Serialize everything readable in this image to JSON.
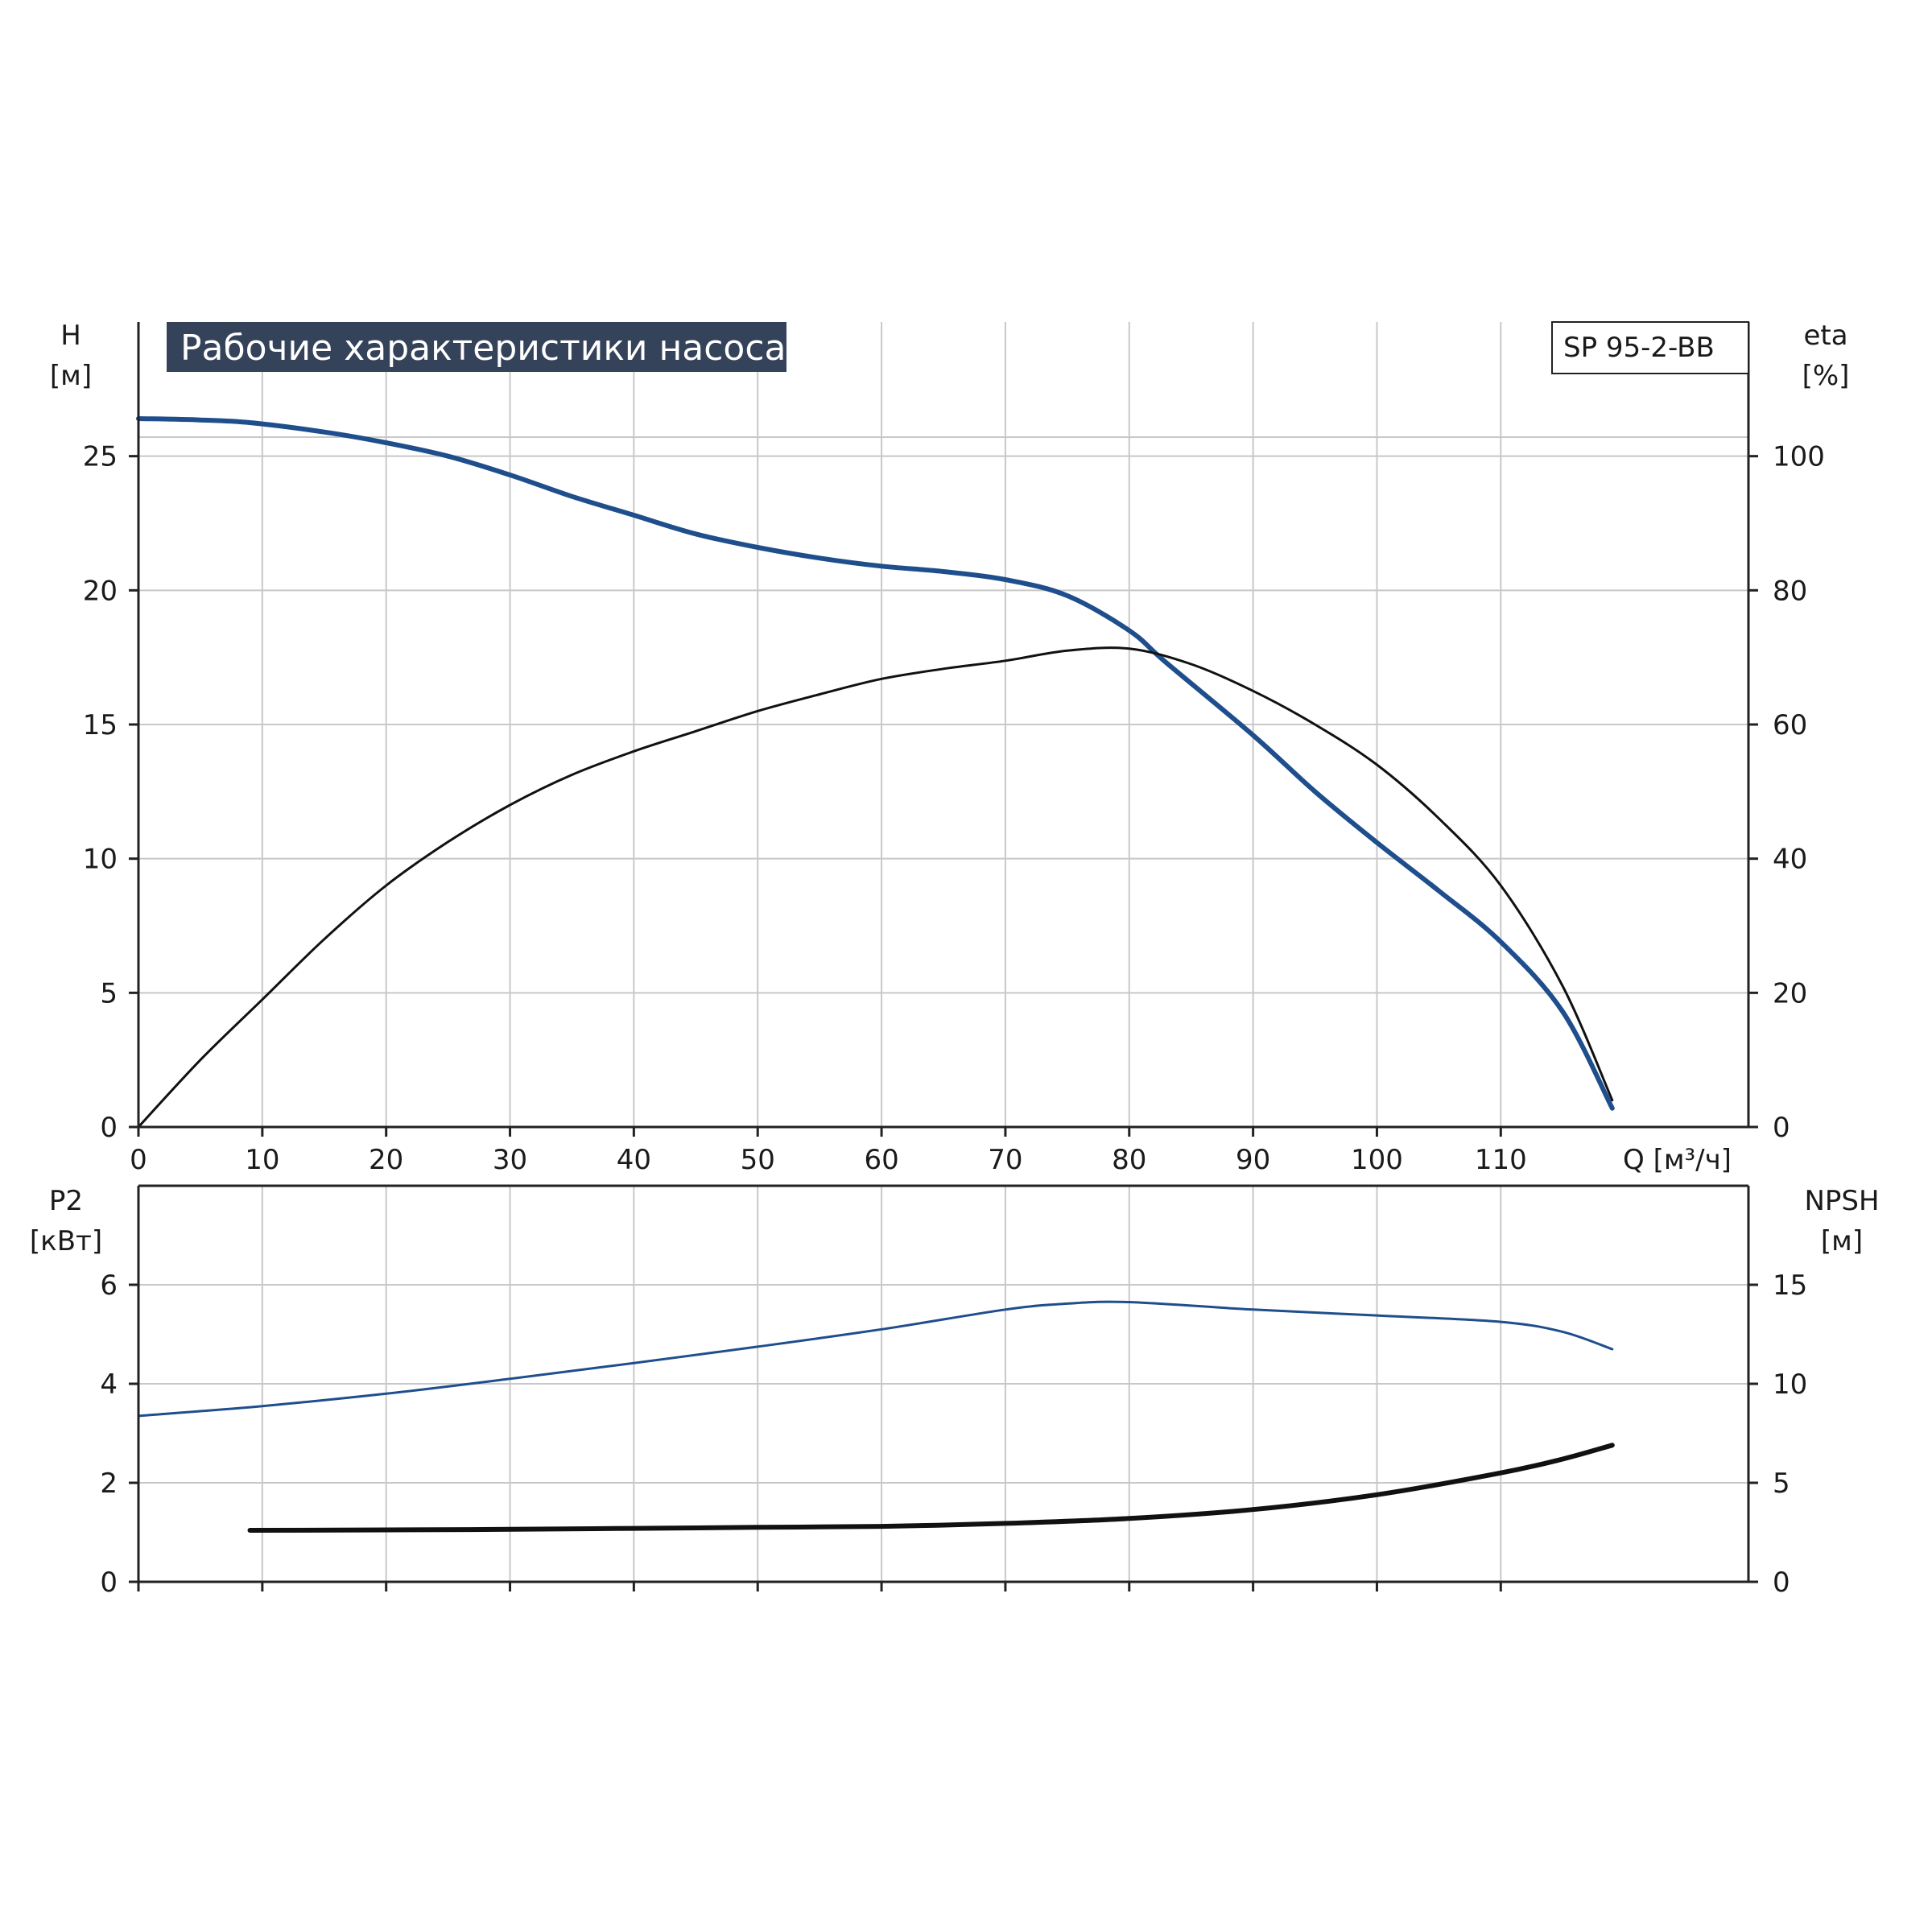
{
  "colors": {
    "grid": "#c8c8c8",
    "frame": "#222222",
    "blue": "#1f4e8c",
    "black": "#111111",
    "title_bg": "#34435a",
    "title_fg": "#ffffff"
  },
  "title": "Рабочие характеристики насоса",
  "model": "SP 95-2-BB",
  "chart_data": [
    {
      "type": "line",
      "xlabel": "Q [м³/ч]",
      "xlim": [
        0,
        130
      ],
      "x_ticks": [
        0,
        10,
        20,
        30,
        40,
        50,
        60,
        70,
        80,
        90,
        100,
        110
      ],
      "left_axis": {
        "label_top": "H",
        "label_unit": "[м]",
        "ylim": [
          0,
          30
        ],
        "ticks": [
          0,
          5,
          10,
          15,
          20,
          25
        ]
      },
      "right_axis": {
        "label_top": "eta",
        "label_unit": "[%]",
        "ylim": [
          0,
          120
        ],
        "ticks": [
          0,
          20,
          40,
          60,
          80,
          100
        ]
      },
      "grid": true,
      "series": [
        {
          "axis": "left",
          "color": "#1f4e8c",
          "points": [
            [
              0,
              26.4
            ],
            [
              5,
              26.35
            ],
            [
              9,
              26.25
            ],
            [
              15,
              25.9
            ],
            [
              20,
              25.5
            ],
            [
              25,
              25.0
            ],
            [
              30,
              24.3
            ],
            [
              35,
              23.5
            ],
            [
              40,
              22.8
            ],
            [
              45,
              22.1
            ],
            [
              50,
              21.6
            ],
            [
              55,
              21.2
            ],
            [
              60,
              20.9
            ],
            [
              65,
              20.7
            ],
            [
              70,
              20.4
            ],
            [
              75,
              19.8
            ],
            [
              80,
              18.5
            ],
            [
              83,
              17.3
            ],
            [
              90,
              14.6
            ],
            [
              95,
              12.5
            ],
            [
              100,
              10.6
            ],
            [
              105,
              8.8
            ],
            [
              110,
              6.9
            ],
            [
              115,
              4.3
            ],
            [
              119,
              0.7
            ]
          ]
        },
        {
          "axis": "right",
          "color": "#111111",
          "points": [
            [
              0,
              0
            ],
            [
              5,
              10
            ],
            [
              10,
              19
            ],
            [
              15,
              28
            ],
            [
              20,
              36
            ],
            [
              25,
              42.5
            ],
            [
              30,
              48
            ],
            [
              35,
              52.5
            ],
            [
              40,
              56
            ],
            [
              45,
              59
            ],
            [
              50,
              62
            ],
            [
              55,
              64.5
            ],
            [
              60,
              66.8
            ],
            [
              65,
              68.3
            ],
            [
              70,
              69.5
            ],
            [
              75,
              71
            ],
            [
              80,
              71.3
            ],
            [
              85,
              69
            ],
            [
              90,
              65
            ],
            [
              95,
              60
            ],
            [
              100,
              54
            ],
            [
              105,
              46
            ],
            [
              110,
              36
            ],
            [
              115,
              21
            ],
            [
              119,
              4
            ]
          ]
        }
      ]
    },
    {
      "type": "line",
      "xlim": [
        0,
        130
      ],
      "x_ticks": [
        0,
        10,
        20,
        30,
        40,
        50,
        60,
        70,
        80,
        90,
        100,
        110
      ],
      "left_axis": {
        "label_top": "P2",
        "label_unit": "[кВт]",
        "ylim": [
          0,
          8
        ],
        "ticks": [
          0,
          2,
          4,
          6
        ]
      },
      "right_axis": {
        "label_top": "NPSH",
        "label_unit": "[м]",
        "ylim": [
          0,
          20
        ],
        "ticks": [
          0,
          5,
          10,
          15
        ]
      },
      "grid": true,
      "series": [
        {
          "axis": "left",
          "color": "#1f4e8c",
          "points": [
            [
              0,
              3.35
            ],
            [
              10,
              3.55
            ],
            [
              20,
              3.8
            ],
            [
              30,
              4.1
            ],
            [
              40,
              4.42
            ],
            [
              50,
              4.75
            ],
            [
              60,
              5.1
            ],
            [
              70,
              5.5
            ],
            [
              75,
              5.62
            ],
            [
              80,
              5.65
            ],
            [
              90,
              5.5
            ],
            [
              100,
              5.38
            ],
            [
              110,
              5.25
            ],
            [
              115,
              5.05
            ],
            [
              119,
              4.7
            ]
          ]
        },
        {
          "axis": "right",
          "color": "#111111",
          "points": [
            [
              9,
              2.6
            ],
            [
              20,
              2.62
            ],
            [
              30,
              2.65
            ],
            [
              40,
              2.7
            ],
            [
              50,
              2.75
            ],
            [
              60,
              2.8
            ],
            [
              70,
              2.95
            ],
            [
              80,
              3.2
            ],
            [
              90,
              3.65
            ],
            [
              100,
              4.4
            ],
            [
              110,
              5.5
            ],
            [
              115,
              6.2
            ],
            [
              119,
              6.9
            ]
          ]
        }
      ]
    }
  ]
}
